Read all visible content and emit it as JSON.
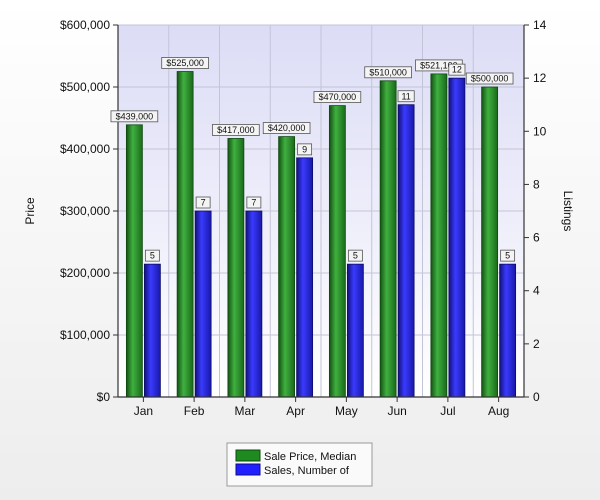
{
  "chart_data": {
    "type": "bar",
    "categories": [
      "Jan",
      "Feb",
      "Mar",
      "Apr",
      "May",
      "Jun",
      "Jul",
      "Aug"
    ],
    "series": [
      {
        "name": "Sale Price, Median",
        "axis": "left",
        "color": "#2e8b2e",
        "values": [
          439000,
          525000,
          417000,
          420000,
          470000,
          510000,
          521100,
          500000
        ],
        "labels": [
          "$439,000",
          "$525,000",
          "$417,000",
          "$420,000",
          "$470,000",
          "$510,000",
          "$521,100",
          "$500,000"
        ]
      },
      {
        "name": "Sales, Number of",
        "axis": "right",
        "color": "#2f2fe0",
        "values": [
          5,
          7,
          7,
          9,
          5,
          11,
          12,
          5
        ],
        "labels": [
          "5",
          "7",
          "7",
          "9",
          "5",
          "11",
          "12",
          "5"
        ]
      }
    ],
    "ylabel": "Price",
    "y2label": "Listings",
    "ylim": [
      0,
      600000
    ],
    "y2lim": [
      0,
      14
    ],
    "yticks": [
      0,
      100000,
      200000,
      300000,
      400000,
      500000,
      600000
    ],
    "ytick_labels": [
      "$0",
      "$100,000",
      "$200,000",
      "$300,000",
      "$400,000",
      "$500,000",
      "$600,000"
    ],
    "y2ticks": [
      0,
      2,
      4,
      6,
      8,
      10,
      12,
      14
    ],
    "y2tick_labels": [
      "0",
      "2",
      "4",
      "6",
      "8",
      "10",
      "12",
      "14"
    ],
    "grid": true,
    "legend_position": "bottom-center"
  }
}
